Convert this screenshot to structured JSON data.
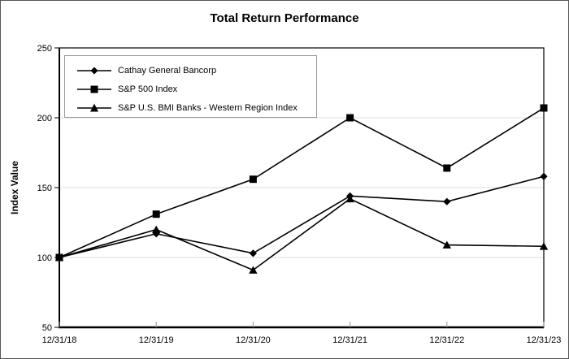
{
  "chart_data": {
    "type": "line",
    "title": "Total Return Performance",
    "xlabel": "",
    "ylabel": "Index Value",
    "categories": [
      "12/31/18",
      "12/31/19",
      "12/31/20",
      "12/31/21",
      "12/31/22",
      "12/31/23"
    ],
    "series": [
      {
        "name": "Cathay General Bancorp",
        "marker": "diamond",
        "values": [
          100,
          117,
          103,
          144,
          140,
          158
        ]
      },
      {
        "name": "S&P 500 Index",
        "marker": "square",
        "values": [
          100,
          131,
          156,
          200,
          164,
          207
        ]
      },
      {
        "name": "S&P U.S. BMI Banks - Western Region Index",
        "marker": "triangle",
        "values": [
          100,
          120,
          91,
          142,
          109,
          108
        ]
      }
    ],
    "ylim": [
      50,
      250
    ],
    "yticks": [
      50,
      100,
      150,
      200,
      250
    ],
    "gridlines": [
      100,
      150,
      200
    ],
    "legend_position": "top-left",
    "grid": "horizontal-light",
    "colors": {
      "series_line": "#000000",
      "marker_fill": "#000000",
      "gridline": "#dcdcdc",
      "axis": "#000000",
      "legend_border": "#999999",
      "background": "#ffffff"
    }
  }
}
